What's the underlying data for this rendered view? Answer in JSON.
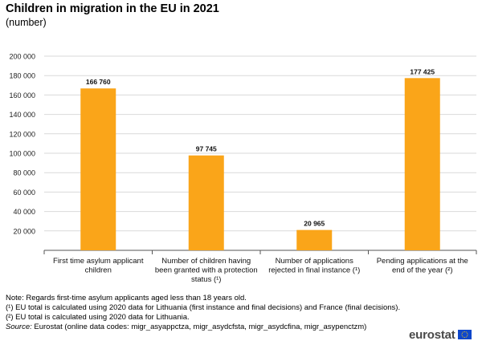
{
  "title": "Children in migration in the EU in 2021",
  "subtitle": "(number)",
  "chart_data": {
    "type": "bar",
    "categories": [
      [
        "First time asylum applicant",
        "children"
      ],
      [
        "Number of children having",
        "been granted with a protection",
        "status (¹)"
      ],
      [
        "Number of applications",
        "rejected in final instance (¹)"
      ],
      [
        "Pending applications at the",
        "end of the year (²)"
      ]
    ],
    "values": [
      166760,
      97745,
      20965,
      177425
    ],
    "data_labels": [
      "166 760",
      "97 745",
      "20 965",
      "177 425"
    ],
    "ylim": [
      0,
      200000
    ],
    "yticks": [
      20000,
      40000,
      60000,
      80000,
      100000,
      120000,
      140000,
      160000,
      180000,
      200000
    ],
    "ytick_labels": [
      "20 000",
      "40 000",
      "60 000",
      "80 000",
      "100 000",
      "120 000",
      "140 000",
      "160 000",
      "180 000",
      "200 000"
    ],
    "grid": true,
    "bar_color": "#FAA519",
    "grid_color": "#d9d9d9",
    "axis_color": "#555555"
  },
  "notes": {
    "line1": "Note: Regards first-time asylum applicants aged less than 18 years old.",
    "line2": "(¹) EU total is calculated using 2020  data for Lithuania (first instance and final decisions) and France (final decisions).",
    "line3": "(²) EU total is calculated using 2020  data for Lithuania.",
    "source_label": "Source:",
    "source_text": " Eurostat (online data codes: migr_asyappctza, migr_asydcfsta, migr_asydcfina, migr_asypenctzm)"
  },
  "logo": {
    "text": "eurostat",
    "flag_color": "#0E47CB",
    "star_color": "#FFCC00"
  }
}
